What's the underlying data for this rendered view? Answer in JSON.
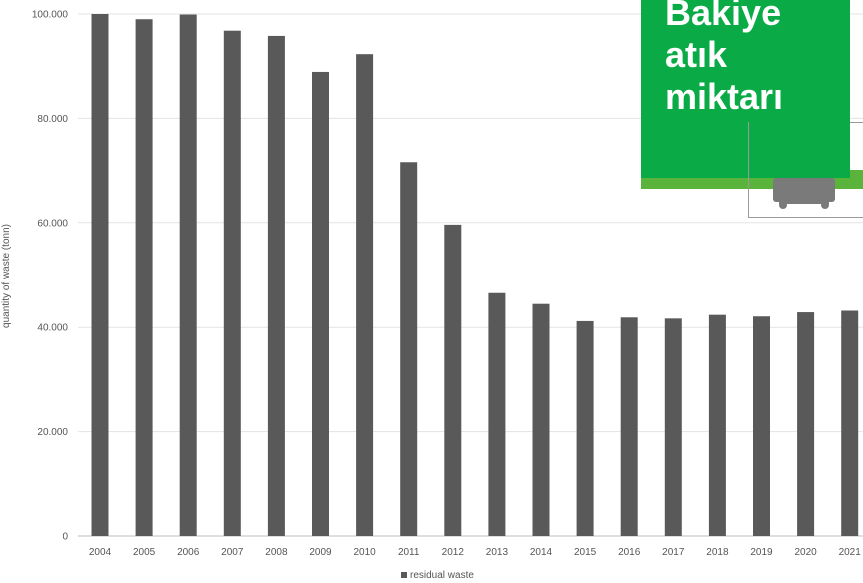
{
  "chart_data": {
    "type": "bar",
    "categories": [
      "2004",
      "2005",
      "2006",
      "2007",
      "2008",
      "2009",
      "2010",
      "2011",
      "2012",
      "2013",
      "2014",
      "2015",
      "2016",
      "2017",
      "2018",
      "2019",
      "2020",
      "2021"
    ],
    "series": [
      {
        "name": "residual waste",
        "color": "#595959",
        "values": [
          100000,
          99000,
          99900,
          96800,
          95800,
          88900,
          92300,
          71600,
          59600,
          46600,
          44500,
          41200,
          41900,
          41700,
          42400,
          42100,
          42900,
          43200
        ]
      }
    ],
    "ylabel": "quantity of waste (tonn)",
    "ylim": [
      0,
      100000
    ],
    "yticks": [
      {
        "value": 0,
        "label": "0"
      },
      {
        "value": 20000,
        "label": "20.000"
      },
      {
        "value": 40000,
        "label": "40.000"
      },
      {
        "value": 60000,
        "label": "60.000"
      },
      {
        "value": 80000,
        "label": "80.000"
      },
      {
        "value": 100000,
        "label": "100.000"
      }
    ],
    "grid": true,
    "legend_position": "bottom-center",
    "legend_entries": [
      "residual waste"
    ]
  },
  "overlay": {
    "title_lines": [
      "Bakiye",
      "atık",
      "miktarı"
    ],
    "accent_color": "#0aab46",
    "icon": "waste-bin-icon"
  }
}
